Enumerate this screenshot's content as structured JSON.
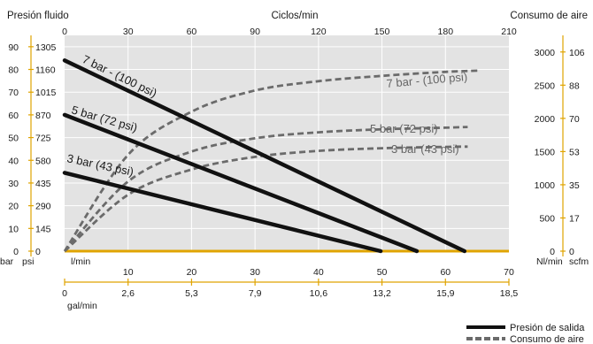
{
  "chart_data": {
    "type": "line",
    "left_axis_title": "Presión fluido",
    "right_axis_title": "Consumo de aire",
    "top_axis_title": "Ciclos/min",
    "left_unit_bar": "bar",
    "left_unit_psi": "psi",
    "right_unit_nlmin": "Nl/min",
    "right_unit_scfm": "scfm",
    "bottom_unit_lmin": "l/min",
    "bottom_unit_galmin": "gal/min",
    "left_ticks_bar": [
      "0",
      "10",
      "20",
      "30",
      "40",
      "50",
      "60",
      "70",
      "80",
      "90"
    ],
    "left_ticks_psi": [
      "0",
      "145",
      "290",
      "435",
      "580",
      "725",
      "870",
      "1015",
      "1160",
      "1305"
    ],
    "right_ticks_nlmin": [
      "0",
      "500",
      "1000",
      "1500",
      "2000",
      "2500",
      "3000"
    ],
    "right_ticks_scfm": [
      "0",
      "17",
      "35",
      "53",
      "70",
      "88",
      "106"
    ],
    "top_ticks": [
      "0",
      "30",
      "60",
      "90",
      "120",
      "150",
      "180",
      "210"
    ],
    "bottom_ticks_lmin": [
      "0",
      "10",
      "20",
      "30",
      "40",
      "50",
      "60",
      "70"
    ],
    "bottom_ticks_galmin": [
      "0",
      "2,6",
      "5,3",
      "7,9",
      "10,6",
      "13,2",
      "15,9",
      "18,5"
    ],
    "xlim": [
      0,
      70
    ],
    "ylim": [
      0,
      95
    ],
    "ylim_air": [
      0,
      3250
    ],
    "top_lim": [
      0,
      210
    ],
    "series": [
      {
        "name": "7 bar - (100 psi)",
        "kind": "fluid_pressure",
        "x": [
          0,
          63
        ],
        "y": [
          84,
          0
        ]
      },
      {
        "name": "5 bar (72 psi)",
        "kind": "fluid_pressure",
        "x": [
          0,
          55.5
        ],
        "y": [
          60,
          0
        ]
      },
      {
        "name": "3 bar (43 psi)",
        "kind": "fluid_pressure",
        "x": [
          0,
          49.8
        ],
        "y": [
          34.5,
          0
        ]
      },
      {
        "name": "7 bar - (100 psi)",
        "kind": "air_consumption",
        "x": [
          0,
          10,
          20,
          30,
          40,
          50,
          60,
          65.5
        ],
        "y": [
          0,
          1450,
          2100,
          2420,
          2560,
          2640,
          2700,
          2720
        ]
      },
      {
        "name": "5 bar (72 psi)",
        "kind": "air_consumption",
        "x": [
          0,
          10,
          20,
          30,
          40,
          50,
          60,
          63.5
        ],
        "y": [
          0,
          1050,
          1500,
          1700,
          1790,
          1835,
          1860,
          1870
        ]
      },
      {
        "name": "3 bar (43 psi)",
        "kind": "air_consumption",
        "x": [
          0,
          10,
          20,
          30,
          40,
          50,
          60,
          63.5
        ],
        "y": [
          0,
          850,
          1230,
          1420,
          1510,
          1550,
          1570,
          1575
        ]
      }
    ],
    "legend": [
      "Presión de salida",
      "Consumo de aire"
    ],
    "legend_position": "bottom-right",
    "colors": {
      "plot_bg": "#e3e3e3",
      "fluid_pressure": "#111111",
      "air_consumption": "#6b6b6b",
      "axis": "#e0a400"
    }
  }
}
